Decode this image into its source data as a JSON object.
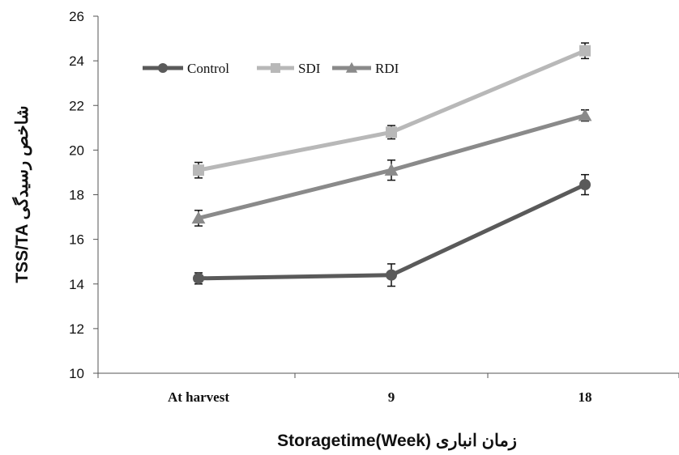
{
  "chart_data": {
    "type": "line",
    "categories": [
      "At harvest",
      "9",
      "18"
    ],
    "series": [
      {
        "name": "Control",
        "values": [
          14.25,
          14.4,
          18.45
        ],
        "errors": [
          0.25,
          0.5,
          0.45
        ],
        "color": "#5a5a5a",
        "marker": "circle"
      },
      {
        "name": "SDI",
        "values": [
          19.1,
          20.8,
          24.45
        ],
        "errors": [
          0.35,
          0.3,
          0.35
        ],
        "color": "#b8b8b8",
        "marker": "square"
      },
      {
        "name": "RDI",
        "values": [
          16.95,
          19.1,
          21.55
        ],
        "errors": [
          0.35,
          0.45,
          0.25
        ],
        "color": "#8a8a8a",
        "marker": "triangle"
      }
    ],
    "xlabel": "Storagetime(Week) زمان انباری",
    "ylabel": "TSS/TA شاخص رسیدگی",
    "ylim": [
      10,
      26
    ],
    "yticks": [
      "10",
      "12",
      "14",
      "16",
      "18",
      "20",
      "22",
      "24",
      "26"
    ],
    "grid": false,
    "legend_position": "top-left"
  }
}
